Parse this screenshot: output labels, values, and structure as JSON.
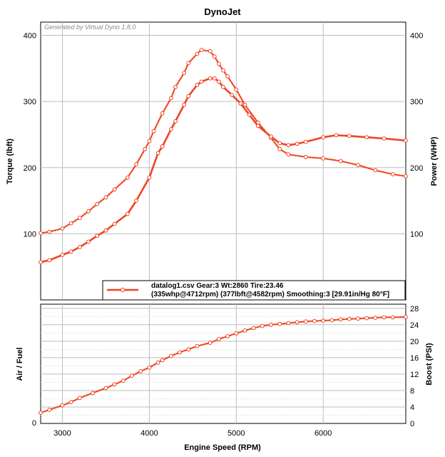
{
  "chart_data": [
    {
      "type": "line",
      "title": "DynoJet",
      "watermark": "Generated by Virtual Dyno 1.8.0",
      "xlabel": "Engine Speed (RPM)",
      "ylabel": "Torque (lbft)",
      "ylabel_right": "Power (WHP)",
      "xlim": [
        2750,
        6950
      ],
      "ylim": [
        0,
        420
      ],
      "ylim_right": [
        0,
        420
      ],
      "x_ticks": [
        "3000",
        "4000",
        "5000",
        "6000"
      ],
      "y_ticks": [
        "100",
        "200",
        "300",
        "400"
      ],
      "y_ticks_right": [
        "100",
        "200",
        "300",
        "400"
      ],
      "grid": true,
      "colors": {
        "series": "#ee4422",
        "grid": "#bdbdbd",
        "minor_grid": "#e4e4e4"
      },
      "legend": {
        "position": "bottom-right",
        "line1": "datalog1.csv Gear:3 Wt:2860 Tire:23.46",
        "line2": "(335whp@4712rpm) (377lbft@4582rpm) Smoothing:3 [29.91in/Hg 80°F]"
      },
      "series": [
        {
          "name": "Power (WHP)",
          "style": "solid",
          "x": [
            2750,
            2850,
            3000,
            3100,
            3200,
            3300,
            3400,
            3500,
            3600,
            3750,
            3850,
            4000,
            4100,
            4150,
            4250,
            4300,
            4400,
            4450,
            4550,
            4600,
            4700,
            4750,
            4800,
            4850,
            4950,
            5050,
            5150,
            5250,
            5400,
            5500,
            5600,
            5700,
            5800,
            6000,
            6150,
            6300,
            6500,
            6700,
            6950
          ],
          "y": [
            57,
            60,
            68,
            73,
            80,
            88,
            97,
            105,
            115,
            130,
            150,
            185,
            222,
            232,
            258,
            270,
            295,
            308,
            325,
            330,
            335,
            335,
            330,
            322,
            310,
            297,
            280,
            263,
            247,
            237,
            234,
            236,
            239,
            246,
            249,
            248,
            246,
            244,
            241
          ]
        },
        {
          "name": "Torque (lbft)",
          "style": "dotted",
          "x": [
            2750,
            2850,
            3000,
            3100,
            3200,
            3300,
            3400,
            3500,
            3600,
            3750,
            3850,
            3950,
            4000,
            4050,
            4150,
            4250,
            4300,
            4400,
            4450,
            4550,
            4600,
            4700,
            4750,
            4800,
            4850,
            4900,
            5000,
            5100,
            5250,
            5400,
            5500,
            5600,
            5800,
            6000,
            6200,
            6400,
            6600,
            6800,
            6950
          ],
          "y": [
            101,
            103,
            108,
            116,
            124,
            134,
            145,
            155,
            167,
            185,
            205,
            228,
            240,
            255,
            282,
            305,
            322,
            343,
            358,
            372,
            378,
            376,
            368,
            357,
            347,
            338,
            318,
            295,
            268,
            245,
            228,
            220,
            216,
            214,
            210,
            204,
            196,
            190,
            187
          ]
        }
      ]
    },
    {
      "type": "line",
      "xlabel": "Engine Speed (RPM)",
      "ylabel": "Air / Fuel",
      "ylabel_right": "Boost (PSI)",
      "xlim": [
        2750,
        6950
      ],
      "ylim_left": [
        0,
        1
      ],
      "ylim": [
        0,
        29
      ],
      "y_ticks_left": [
        "0"
      ],
      "y_ticks": [
        "0",
        "4",
        "8",
        "12",
        "16",
        "20",
        "24",
        "28"
      ],
      "x_ticks": [
        "3000",
        "4000",
        "5000",
        "6000"
      ],
      "grid": true,
      "series": [
        {
          "name": "Boost (PSI)",
          "style": "dotted",
          "x": [
            2750,
            2850,
            3000,
            3100,
            3200,
            3350,
            3500,
            3600,
            3700,
            3800,
            3900,
            4000,
            4100,
            4150,
            4250,
            4350,
            4450,
            4550,
            4700,
            4800,
            4900,
            5000,
            5100,
            5200,
            5300,
            5400,
            5500,
            5600,
            5700,
            5800,
            5900,
            6000,
            6100,
            6200,
            6300,
            6400,
            6500,
            6600,
            6700,
            6800,
            6950
          ],
          "y": [
            2.6,
            3.3,
            4.4,
            5.2,
            6.2,
            7.4,
            8.6,
            9.5,
            10.4,
            11.6,
            12.7,
            13.6,
            14.8,
            15.4,
            16.4,
            17.3,
            18.0,
            18.8,
            19.6,
            20.5,
            21.2,
            21.9,
            22.6,
            23.2,
            23.7,
            24.0,
            24.2,
            24.4,
            24.6,
            24.8,
            24.9,
            25.0,
            25.1,
            25.3,
            25.4,
            25.5,
            25.6,
            25.7,
            25.8,
            25.8,
            25.9
          ]
        }
      ]
    }
  ]
}
